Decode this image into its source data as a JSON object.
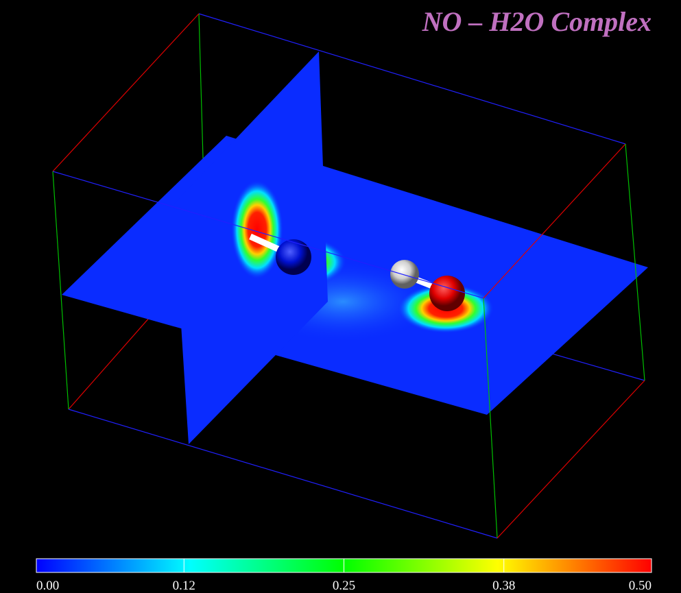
{
  "title": "NO – H2O Complex",
  "colorbar": {
    "ticks": [
      {
        "value": 0,
        "label": "0.00"
      },
      {
        "value": 0.12,
        "label": "0.12"
      },
      {
        "value": 0.25,
        "label": "0.25"
      },
      {
        "value": 0.38,
        "label": "0.38"
      },
      {
        "value": 0.5,
        "label": "0.50"
      }
    ]
  }
}
